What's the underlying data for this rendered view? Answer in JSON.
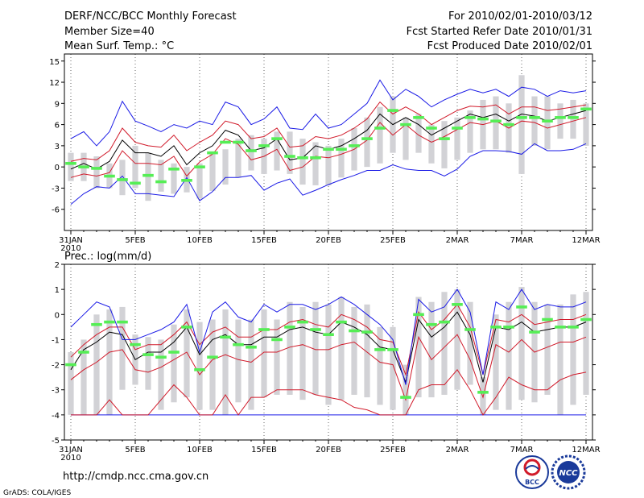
{
  "header": {
    "title": "DERF/NCC/BCC Monthly Forecast",
    "member_size": "Member Size=40",
    "forecast_range": "For 2010/02/01-2010/03/12",
    "started_refer": "Fcst Started Refer Date 2010/01/31",
    "produced": "Fcst Produced Date 2010/02/01"
  },
  "footer": {
    "url": "http://cmdp.ncc.cma.gov.cn",
    "grads": "GrADS: COLA/IGES",
    "logo_bcc": "BCC",
    "logo_ncc": "NCC"
  },
  "colors": {
    "box": "#d2d2d6",
    "median": "#55ee55",
    "outer": "#1a1ae6",
    "inner": "#d11a2a",
    "mean": "#000000"
  },
  "chart_data": [
    {
      "type": "line",
      "title": "Mean Surf. Temp.: °C",
      "x_days": [
        0,
        1,
        2,
        3,
        4,
        5,
        6,
        7,
        8,
        9,
        10,
        11,
        12,
        13,
        14,
        15,
        16,
        17,
        18,
        19,
        20,
        21,
        22,
        23,
        24,
        25,
        26,
        27,
        28,
        29,
        30,
        31,
        32,
        33,
        34,
        35,
        36,
        37,
        38,
        39,
        40
      ],
      "x_ticks": [
        {
          "day": 0,
          "label": "31JAN",
          "sub": "2010"
        },
        {
          "day": 5,
          "label": "5FEB"
        },
        {
          "day": 10,
          "label": "10FEB"
        },
        {
          "day": 15,
          "label": "15FEB"
        },
        {
          "day": 20,
          "label": "20FEB"
        },
        {
          "day": 25,
          "label": "25FEB"
        },
        {
          "day": 30,
          "label": "2MAR"
        },
        {
          "day": 35,
          "label": "7MAR"
        },
        {
          "day": 40,
          "label": "12MAR"
        }
      ],
      "ylim": [
        -9,
        16
      ],
      "y_ticks": [
        -6,
        -3,
        0,
        3,
        6,
        9,
        12,
        15
      ],
      "box_low": [
        -2,
        -2,
        -3,
        -3,
        -4,
        -3,
        -4.8,
        -3.5,
        -3.8,
        -3.6,
        -4.5,
        -3.4,
        -2.5,
        -1.5,
        -0.5,
        -1,
        -0.5,
        -1,
        -2.5,
        -2.6,
        -2.6,
        -1.5,
        -0.5,
        0,
        0.5,
        2,
        1,
        2,
        0.5,
        -0.2,
        1,
        2,
        2.5,
        2.5,
        2,
        -1,
        3,
        2.5,
        4,
        4,
        3
      ],
      "box_high": [
        2,
        2,
        1.5,
        0.5,
        1,
        3,
        2,
        1,
        0.5,
        0,
        0.5,
        2,
        2.5,
        4,
        4.5,
        4,
        5,
        5,
        4,
        3.5,
        3,
        4,
        5.5,
        7,
        8.5,
        10,
        7,
        7.5,
        6,
        6.5,
        7,
        8,
        9.5,
        10,
        9,
        13,
        10,
        10,
        9,
        9.5,
        9
      ],
      "median": [
        0.5,
        0,
        -0.2,
        -1.3,
        -1.8,
        -2.3,
        -1.2,
        -2.1,
        -0.3,
        -1.9,
        0,
        2,
        3.5,
        3.5,
        2.3,
        3,
        4,
        1.5,
        1.3,
        1.3,
        2.5,
        2.5,
        3,
        4,
        5.5,
        8,
        6,
        7,
        5.5,
        4,
        5.5,
        7,
        6.8,
        6.5,
        6,
        7,
        7,
        6.5,
        7,
        7,
        8.2
      ],
      "series": [
        {
          "name": "mean",
          "color_key": "mean",
          "values": [
            -0.3,
            0.5,
            -0.3,
            0.8,
            3.8,
            2,
            2,
            1.5,
            3,
            0.3,
            2,
            3,
            5.2,
            4.5,
            2.3,
            2.7,
            4,
            1,
            1.3,
            3,
            2.5,
            3,
            4,
            5.2,
            7.5,
            6,
            7,
            6,
            4.5,
            5.5,
            6.5,
            7.5,
            7,
            7.5,
            6.5,
            7.5,
            7.2,
            6.5,
            7,
            7.5,
            8
          ]
        },
        {
          "name": "upper_inner",
          "color_key": "inner",
          "values": [
            0.8,
            1.2,
            1,
            2.3,
            5.5,
            3.5,
            3,
            2.8,
            4.5,
            2.3,
            3.5,
            4.5,
            6.5,
            6,
            4,
            4.3,
            5.5,
            2.8,
            3,
            4.3,
            4,
            4.5,
            5.5,
            6.8,
            9.2,
            7.5,
            8.5,
            7.5,
            6,
            7,
            8,
            8.6,
            8.5,
            8.8,
            7.5,
            8.5,
            8.5,
            8,
            8.2,
            8.5,
            8.8
          ]
        },
        {
          "name": "lower_inner",
          "color_key": "inner",
          "values": [
            -1.5,
            -1,
            -1.3,
            -0.8,
            2.3,
            0.5,
            0.5,
            0.3,
            1.5,
            -1.3,
            0.7,
            1.8,
            4,
            3.2,
            1,
            1.5,
            2.5,
            -0.5,
            0,
            1.5,
            1.3,
            1.8,
            2.5,
            3.8,
            6.3,
            4.5,
            6,
            4.5,
            3.5,
            4.3,
            5.3,
            6.3,
            6,
            6.5,
            5.5,
            6.5,
            6.3,
            5.5,
            6,
            6.5,
            7
          ]
        },
        {
          "name": "upper_outer",
          "color_key": "outer",
          "values": [
            4,
            5,
            3,
            5,
            9.3,
            6.5,
            5.8,
            5,
            6,
            5.5,
            6.5,
            6,
            9.2,
            8.5,
            6,
            6.8,
            8.5,
            5.5,
            5.3,
            7.5,
            5.5,
            6,
            7.5,
            9,
            12.3,
            9.5,
            11,
            10,
            8.5,
            9.5,
            10.3,
            11,
            10.5,
            11,
            10,
            11.3,
            11,
            10,
            10.8,
            10.5,
            10.8
          ]
        },
        {
          "name": "lower_outer",
          "color_key": "outer",
          "values": [
            -5.3,
            -3.8,
            -2.8,
            -3,
            -1.3,
            -3.8,
            -3.8,
            -4,
            -4.2,
            -1.5,
            -4.8,
            -3.5,
            -1.5,
            -1.5,
            -1.2,
            -3.3,
            -2.3,
            -1.7,
            -4,
            -3.3,
            -2.5,
            -1.8,
            -1.2,
            -0.5,
            -0.5,
            0.3,
            -0.3,
            -0.5,
            -0.5,
            -1.3,
            -0.3,
            1.5,
            2.3,
            2.3,
            2.2,
            1.8,
            3.3,
            2.3,
            2.3,
            2.5,
            3.3
          ]
        }
      ]
    },
    {
      "type": "line",
      "title": "Prec.: log(mm/d)",
      "x_days": [
        0,
        1,
        2,
        3,
        4,
        5,
        6,
        7,
        8,
        9,
        10,
        11,
        12,
        13,
        14,
        15,
        16,
        17,
        18,
        19,
        20,
        21,
        22,
        23,
        24,
        25,
        26,
        27,
        28,
        29,
        30,
        31,
        32,
        33,
        34,
        35,
        36,
        37,
        38,
        39,
        40
      ],
      "x_ticks": [
        {
          "day": 0,
          "label": "31JAN",
          "sub": "2010"
        },
        {
          "day": 5,
          "label": "5FEB"
        },
        {
          "day": 10,
          "label": "10FEB"
        },
        {
          "day": 15,
          "label": "15FEB"
        },
        {
          "day": 20,
          "label": "20FEB"
        },
        {
          "day": 25,
          "label": "25FEB"
        },
        {
          "day": 30,
          "label": "2MAR"
        },
        {
          "day": 35,
          "label": "7MAR"
        },
        {
          "day": 40,
          "label": "12MAR"
        }
      ],
      "ylim": [
        -5,
        2
      ],
      "y_ticks": [
        -5,
        -4,
        -3,
        -2,
        -1,
        0,
        1,
        2
      ],
      "box_low": [
        -4,
        -4,
        -4,
        -4,
        -3,
        -2.8,
        -3,
        -3.8,
        -3.5,
        -3.3,
        -3.8,
        -3.8,
        -4,
        -3.5,
        -3.8,
        -3.3,
        -3.2,
        -3.2,
        -3.4,
        -3.2,
        -3.6,
        -3.4,
        -3.2,
        -3.3,
        -3.6,
        -3.8,
        -4,
        -3.3,
        -3.3,
        -3.2,
        -3,
        -2.8,
        -4,
        -3.8,
        -3.8,
        -3.4,
        -3.5,
        -3.2,
        -4,
        -3.6,
        -3.2
      ],
      "box_high": [
        -1.5,
        -1,
        0,
        0.2,
        0.3,
        -0.8,
        -0.9,
        -1,
        -0.4,
        0.2,
        -0.3,
        -0.2,
        0.2,
        -0.2,
        -0.2,
        0.2,
        -0.2,
        0.5,
        0.3,
        0.5,
        0.4,
        0.7,
        0.3,
        0.4,
        -0.5,
        -0.5,
        -2,
        0.7,
        0.5,
        0.9,
        1,
        0.5,
        -2.5,
        0,
        0.5,
        1.1,
        0.5,
        0.4,
        0.4,
        0.8,
        0.9
      ],
      "median": [
        -2,
        -1.5,
        -0.4,
        -0.3,
        -0.3,
        -1.2,
        -1.6,
        -1.7,
        -1.5,
        -0.5,
        -2.2,
        -1.7,
        -0.9,
        -1.2,
        -1.3,
        -0.6,
        -1,
        -0.5,
        -0.3,
        -0.6,
        -0.8,
        -0.3,
        -0.65,
        -0.7,
        -1.4,
        -1.4,
        -3.3,
        0,
        -0.4,
        -0.3,
        0.4,
        -0.6,
        -3.1,
        -0.5,
        -0.5,
        0.3,
        -0.7,
        -0.2,
        -0.5,
        -0.5,
        -0.2
      ],
      "series": [
        {
          "name": "mean",
          "color_key": "mean",
          "values": [
            -2.2,
            -1.4,
            -1.1,
            -0.7,
            -0.8,
            -1.8,
            -1.5,
            -1.5,
            -1.1,
            -0.5,
            -1.6,
            -1,
            -0.8,
            -1.2,
            -1.2,
            -0.9,
            -0.9,
            -0.6,
            -0.5,
            -0.7,
            -0.8,
            -0.3,
            -0.5,
            -0.8,
            -1.3,
            -1.4,
            -2.7,
            -0.2,
            -0.9,
            -0.5,
            0.1,
            -0.8,
            -2.7,
            -0.5,
            -0.6,
            -0.3,
            -0.7,
            -0.6,
            -0.5,
            -0.5,
            -0.3
          ]
        },
        {
          "name": "upper_inner",
          "color_key": "inner",
          "values": [
            -1.7,
            -1.2,
            -0.8,
            -0.5,
            -0.5,
            -1.4,
            -1.2,
            -1.2,
            -0.8,
            -0.3,
            -1.2,
            -0.7,
            -0.5,
            -0.9,
            -0.9,
            -0.6,
            -0.6,
            -0.3,
            -0.2,
            -0.4,
            -0.5,
            0,
            -0.2,
            -0.5,
            -1,
            -1.1,
            -2.4,
            0.1,
            -0.6,
            -0.2,
            0.4,
            -0.5,
            -2.4,
            -0.2,
            -0.3,
            0,
            -0.4,
            -0.3,
            -0.2,
            -0.2,
            0
          ]
        },
        {
          "name": "lower_inner",
          "color_key": "inner",
          "values": [
            -2.6,
            -2.2,
            -1.9,
            -1.5,
            -1.4,
            -2.2,
            -2.3,
            -2.1,
            -1.8,
            -1.5,
            -2.4,
            -1.8,
            -1.6,
            -1.8,
            -1.9,
            -1.5,
            -1.5,
            -1.3,
            -1.2,
            -1.4,
            -1.4,
            -1.2,
            -1.1,
            -1.5,
            -1.9,
            -2,
            -3.4,
            -0.9,
            -1.8,
            -1.3,
            -0.8,
            -1.8,
            -3.3,
            -1.2,
            -1.5,
            -1,
            -1.5,
            -1.3,
            -1.1,
            -1.1,
            -0.9
          ]
        },
        {
          "name": "upper_outer",
          "color_key": "outer",
          "values": [
            -0.5,
            0,
            0.5,
            0.3,
            -1,
            -1,
            -0.8,
            -0.6,
            -0.3,
            0.4,
            -1.5,
            0.1,
            0.5,
            -0.1,
            -0.3,
            0.4,
            0.1,
            0.4,
            0.4,
            0.2,
            0.4,
            0.7,
            0.4,
            0,
            -0.4,
            -1,
            -2.8,
            0.6,
            0.1,
            0.3,
            1,
            0.1,
            -2.4,
            0.5,
            0.2,
            1,
            0.2,
            0.4,
            0.3,
            0.3,
            0.5
          ]
        },
        {
          "name": "lower_outer",
          "color_key": "outer",
          "values": [
            -4,
            -4,
            -4,
            -4,
            -4,
            -4,
            -4,
            -4,
            -4,
            -4,
            -4,
            -4,
            -4,
            -4,
            -4,
            -4,
            -4,
            -4,
            -4,
            -4,
            -4,
            -4,
            -4,
            -4,
            -4,
            -4,
            -4,
            -4,
            -4,
            -4,
            -4,
            -4,
            -4,
            -4,
            -4,
            -4,
            -4,
            -4,
            -4,
            -4,
            -4
          ]
        },
        {
          "name": "red_low",
          "color_key": "inner",
          "values": [
            -4,
            -4,
            -4,
            -3.4,
            -4,
            -4,
            -4,
            -3.4,
            -2.8,
            -3.3,
            -4,
            -4,
            -3.2,
            -4,
            -3.3,
            -3.3,
            -3,
            -3,
            -3,
            -3.2,
            -3.3,
            -3.4,
            -3.7,
            -3.8,
            -4,
            -4,
            -4,
            -3,
            -2.8,
            -2.8,
            -2.2,
            -3,
            -4,
            -3.3,
            -2.5,
            -2.8,
            -3,
            -3,
            -2.6,
            -2.4,
            -2.3
          ]
        }
      ]
    }
  ]
}
